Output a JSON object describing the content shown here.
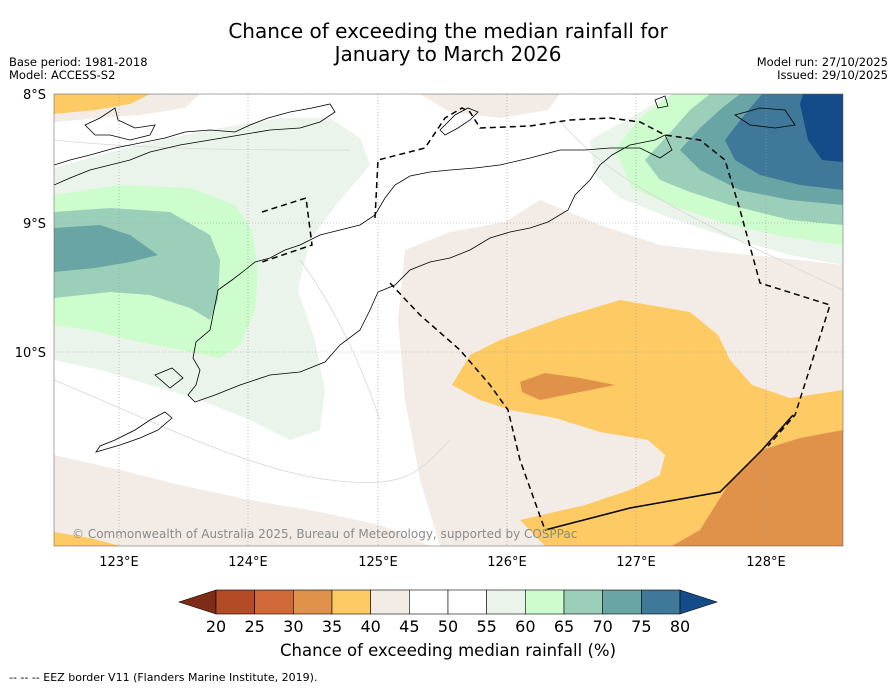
{
  "title": {
    "line1": "Chance of exceeding the median rainfall for",
    "line2": "January to March 2026"
  },
  "meta": {
    "base_period": "Base period: 1981-2018",
    "model": "Model: ACCESS-S2",
    "model_run": "Model run: 27/10/2025",
    "issued": "Issued: 29/10/2025"
  },
  "map": {
    "lat_labels": [
      "8°S",
      "9°S",
      "10°S"
    ],
    "lon_labels": [
      "123°E",
      "124°E",
      "125°E",
      "126°E",
      "127°E",
      "128°E"
    ],
    "copyright": "© Commonwealth of Australia 2025, Bureau of Meteorology, supported by COSPPac"
  },
  "colorbar": {
    "ticks": [
      "20",
      "25",
      "30",
      "35",
      "40",
      "45",
      "50",
      "55",
      "60",
      "65",
      "70",
      "75",
      "80"
    ],
    "colors": [
      "#7e2b17",
      "#b34b27",
      "#d0683a",
      "#e0924a",
      "#fdca63",
      "#f3ece6",
      "#ffffff",
      "#ffffff",
      "#eaf4ea",
      "#cdfccd",
      "#9ccfb9",
      "#6aa5a6",
      "#3f7898",
      "#134c88"
    ],
    "label": "Chance of exceeding median rainfall (%)"
  },
  "colors": {
    "c40_45": "#f3ece6",
    "c35_40": "#fdca63",
    "c30_35": "#e0924a",
    "c55_60": "#eaf4ea",
    "c60_65": "#cdfccd",
    "c65_70": "#9ccfb9",
    "c70_75": "#6aa5a6",
    "c75_80": "#3f7898",
    "c80": "#134c88"
  },
  "footnote": "--  --  -- EEZ border V11 (Flanders Marine Institute, 2019)."
}
